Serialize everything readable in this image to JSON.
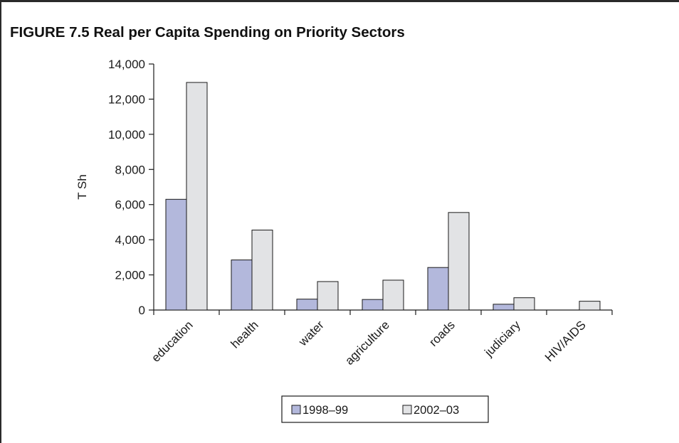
{
  "figure": {
    "title": "FIGURE 7.5 Real per Capita Spending on Priority Sectors"
  },
  "chart_data": {
    "type": "bar",
    "title": "",
    "xlabel": "",
    "ylabel": "T Sh",
    "ylim": [
      0,
      14000
    ],
    "yticks": [
      0,
      2000,
      4000,
      6000,
      8000,
      10000,
      12000,
      14000
    ],
    "ytick_labels": [
      "0",
      "2,000",
      "4,000",
      "6,000",
      "8,000",
      "10,000",
      "12,000",
      "14,000"
    ],
    "categories": [
      "education",
      "health",
      "water",
      "agriculture",
      "roads",
      "judiciary",
      "HIV/AIDS"
    ],
    "series": [
      {
        "name": "1998–99",
        "values": [
          6300,
          2850,
          620,
          600,
          2420,
          330,
          0
        ],
        "color": "#b3b8dc"
      },
      {
        "name": "2002–03",
        "values": [
          12950,
          4550,
          1620,
          1700,
          5550,
          700,
          500
        ],
        "color": "#e2e3e5"
      }
    ],
    "grid": false,
    "legend": "bottom-center"
  }
}
